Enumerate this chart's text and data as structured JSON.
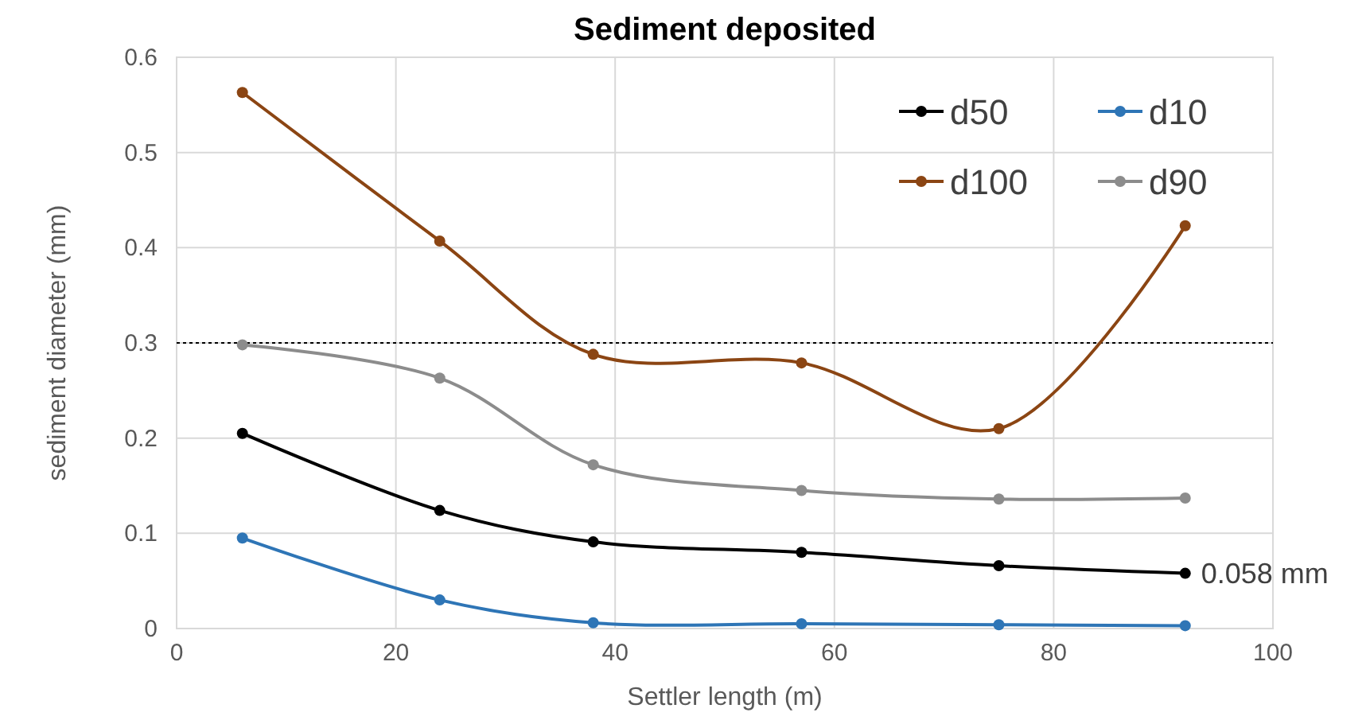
{
  "chart_data": {
    "type": "line",
    "title": "Sediment deposited",
    "xlabel": "Settler length (m)",
    "ylabel": "sediment diameter (mm)",
    "x": [
      6,
      24,
      38,
      57,
      75,
      92
    ],
    "series": [
      {
        "name": "d50",
        "color": "#000000",
        "values": [
          0.205,
          0.124,
          0.091,
          0.08,
          0.066,
          0.058
        ]
      },
      {
        "name": "d10",
        "color": "#2e75b6",
        "values": [
          0.095,
          0.03,
          0.006,
          0.005,
          0.004,
          0.003
        ]
      },
      {
        "name": "d100",
        "color": "#8b4513",
        "values": [
          0.563,
          0.407,
          0.288,
          0.279,
          0.21,
          0.423
        ]
      },
      {
        "name": "d90",
        "color": "#8c8c8c",
        "values": [
          0.298,
          0.263,
          0.172,
          0.145,
          0.136,
          0.137
        ]
      }
    ],
    "xlim": [
      0,
      100
    ],
    "xticks": [
      0,
      20,
      40,
      60,
      80,
      100
    ],
    "ylim": [
      0,
      0.6
    ],
    "yticks": [
      {
        "value": 0,
        "label": "0"
      },
      0.1,
      0.2,
      0.3,
      0.4,
      0.5,
      0.6
    ],
    "ref_lines": [
      {
        "axis": "y",
        "value": 0.3,
        "color": "#000000",
        "line_style": "dotted"
      }
    ],
    "annotations": [
      {
        "text": "0.058 mm",
        "x": 92,
        "y": 0.058
      }
    ],
    "grid": true,
    "legend": "top right",
    "marker": "circle",
    "line_style": "solid"
  }
}
